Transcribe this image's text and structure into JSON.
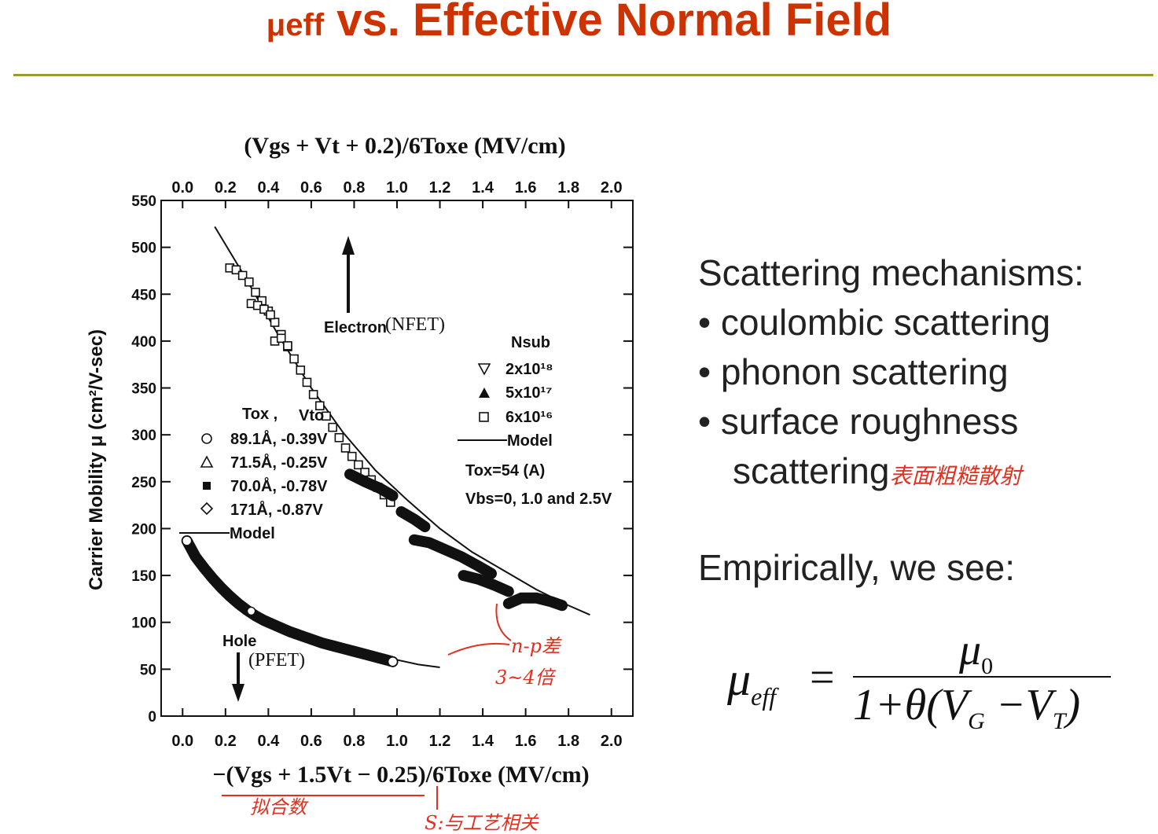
{
  "slide": {
    "title_mu": "μeff",
    "title_rest": " vs. Effective Normal Field"
  },
  "bullets": {
    "heading": "Scattering mechanisms:",
    "items": [
      "• coulombic scattering",
      "• phonon scattering",
      "• surface roughness"
    ],
    "continuation": "scattering",
    "annotation": "表面粗糙散射"
  },
  "empirical": "Empirically, we see:",
  "formula": {
    "lhs": "μ",
    "lhs_sub": "eff",
    "eq": "=",
    "num": "μ",
    "num_sub": "0",
    "den": "1+θ(V",
    "den_sub_g": "G",
    "den_mid": " −V",
    "den_sub_t": "T",
    "den_end": ")"
  },
  "colors": {
    "title": "#cc3300",
    "rule": "#9a9a33",
    "annotation": "#e03020"
  },
  "chart_data": {
    "type": "scatter",
    "top_xlabel": "(Vgs + Vt + 0.2)/6Toxe  (MV/cm)",
    "bottom_xlabel": "−(Vgs + 1.5Vt − 0.25)/6Toxe  (MV/cm)",
    "ylabel": "Carrier Mobility μ  (cm²/V-sec)",
    "xlim": [
      -0.1,
      2.1
    ],
    "ylim": [
      0,
      550
    ],
    "x_ticks": [
      "0.0",
      "0.2",
      "0.4",
      "0.6",
      "0.8",
      "1.0",
      "1.2",
      "1.4",
      "1.6",
      "1.8",
      "2.0"
    ],
    "y_ticks": [
      "0",
      "50",
      "100",
      "150",
      "200",
      "250",
      "300",
      "350",
      "400",
      "450",
      "500",
      "550"
    ],
    "electron_label": "Electron",
    "electron_label_paren": "(NFET)",
    "hole_label": "Hole",
    "hole_label_paren": "(PFET)",
    "legend_right": {
      "title": "Nsub",
      "entries": [
        "2x10¹⁸",
        "5x10¹⁷",
        "6x10¹⁶"
      ],
      "model": "Model",
      "tox_note": "Tox=54 (A)",
      "vbs_note": "Vbs=0, 1.0 and 2.5V"
    },
    "legend_left": {
      "header_tox": "Tox ,",
      "header_vto": "Vto",
      "entries": [
        "89.1Å, -0.39V",
        "71.5Å, -0.25V",
        "70.0Å, -0.78V",
        "171Å, -0.87V"
      ],
      "model": "Model"
    },
    "electron_model": {
      "x": [
        0.15,
        0.3,
        0.45,
        0.6,
        0.75,
        0.9,
        1.05,
        1.2,
        1.35,
        1.5,
        1.65,
        1.8,
        1.9
      ],
      "y": [
        522,
        465,
        405,
        350,
        302,
        262,
        230,
        200,
        175,
        155,
        135,
        118,
        108
      ]
    },
    "electron_squares": {
      "x": [
        0.22,
        0.25,
        0.28,
        0.31,
        0.34,
        0.37,
        0.4,
        0.43,
        0.46,
        0.49,
        0.52,
        0.55,
        0.58,
        0.61,
        0.64,
        0.67,
        0.7,
        0.73,
        0.76,
        0.79,
        0.82,
        0.85,
        0.88,
        0.91,
        0.94,
        0.97,
        0.32,
        0.35,
        0.38,
        0.41,
        0.43,
        0.46,
        0.49
      ],
      "y": [
        478,
        476,
        470,
        463,
        452,
        443,
        432,
        420,
        407,
        394,
        381,
        369,
        356,
        343,
        331,
        320,
        308,
        297,
        286,
        277,
        268,
        260,
        252,
        244,
        236,
        228,
        440,
        438,
        434,
        428,
        400,
        403,
        395
      ]
    },
    "electron_triangles": {
      "segments": [
        {
          "x": [
            0.78,
            0.85,
            0.92,
            0.98
          ],
          "y": [
            258,
            250,
            243,
            235
          ]
        },
        {
          "x": [
            1.02,
            1.08,
            1.13
          ],
          "y": [
            218,
            210,
            202
          ]
        },
        {
          "x": [
            1.08,
            1.15,
            1.22,
            1.3,
            1.38,
            1.44
          ],
          "y": [
            188,
            185,
            178,
            170,
            160,
            152
          ]
        },
        {
          "x": [
            1.31,
            1.38,
            1.45,
            1.52
          ],
          "y": [
            150,
            146,
            140,
            133
          ]
        },
        {
          "x": [
            1.52,
            1.58,
            1.65,
            1.72,
            1.77
          ],
          "y": [
            120,
            126,
            126,
            122,
            118
          ]
        }
      ]
    },
    "hole_model": {
      "x": [
        0.02,
        0.1,
        0.2,
        0.3,
        0.4,
        0.5,
        0.6,
        0.7,
        0.8,
        0.9,
        1.0,
        1.1,
        1.2
      ],
      "y": [
        190,
        160,
        133,
        113,
        100,
        90,
        82,
        75,
        69,
        64,
        60,
        55,
        52
      ]
    },
    "hole_points": {
      "x": [
        0.02,
        0.06,
        0.1,
        0.14,
        0.18,
        0.22,
        0.26,
        0.3,
        0.34,
        0.38,
        0.42,
        0.46,
        0.5,
        0.55,
        0.6,
        0.65,
        0.7,
        0.75,
        0.8,
        0.85,
        0.9,
        0.95,
        0.98
      ],
      "y": [
        187,
        170,
        158,
        147,
        137,
        128,
        120,
        113,
        107,
        102,
        98,
        94,
        90,
        86,
        82,
        78,
        75,
        72,
        69,
        66,
        63,
        60,
        58
      ]
    },
    "annotations": [
      "n-p差",
      "3~4倍",
      "拟合数",
      "S:与工艺相关"
    ]
  }
}
